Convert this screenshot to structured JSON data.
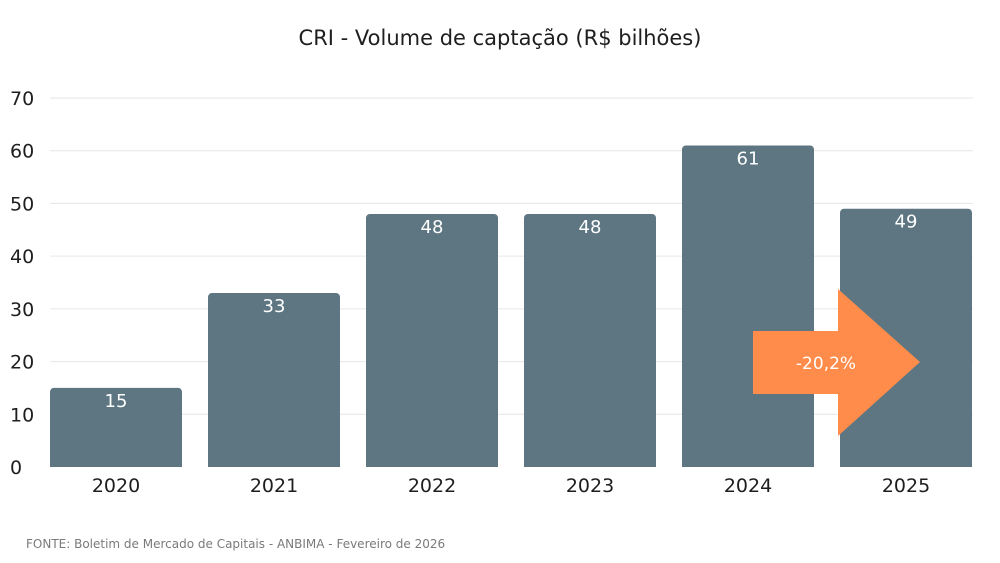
{
  "chart_data": {
    "type": "bar",
    "title": "CRI - Volume de captação (R$ bilhões)",
    "categories": [
      "2020",
      "2021",
      "2022",
      "2023",
      "2024",
      "2025"
    ],
    "values": [
      15,
      33,
      48,
      48,
      61,
      49
    ],
    "data_labels": [
      "15",
      "33",
      "48",
      "48",
      "61",
      "49"
    ],
    "ylim": [
      0,
      70
    ],
    "yticks": [
      0,
      10,
      20,
      30,
      40,
      50,
      60,
      70
    ],
    "xlabel": "",
    "ylabel": "",
    "grid": true,
    "bar_color": "#5d7682",
    "annotation": {
      "text": "-20,2%",
      "shape": "right-arrow",
      "color": "#ff8c4a",
      "from_category": "2024",
      "to_category": "2025"
    }
  },
  "source": "FONTE: Boletim de Mercado de Capitais - ANBIMA - Fevereiro de 2026"
}
